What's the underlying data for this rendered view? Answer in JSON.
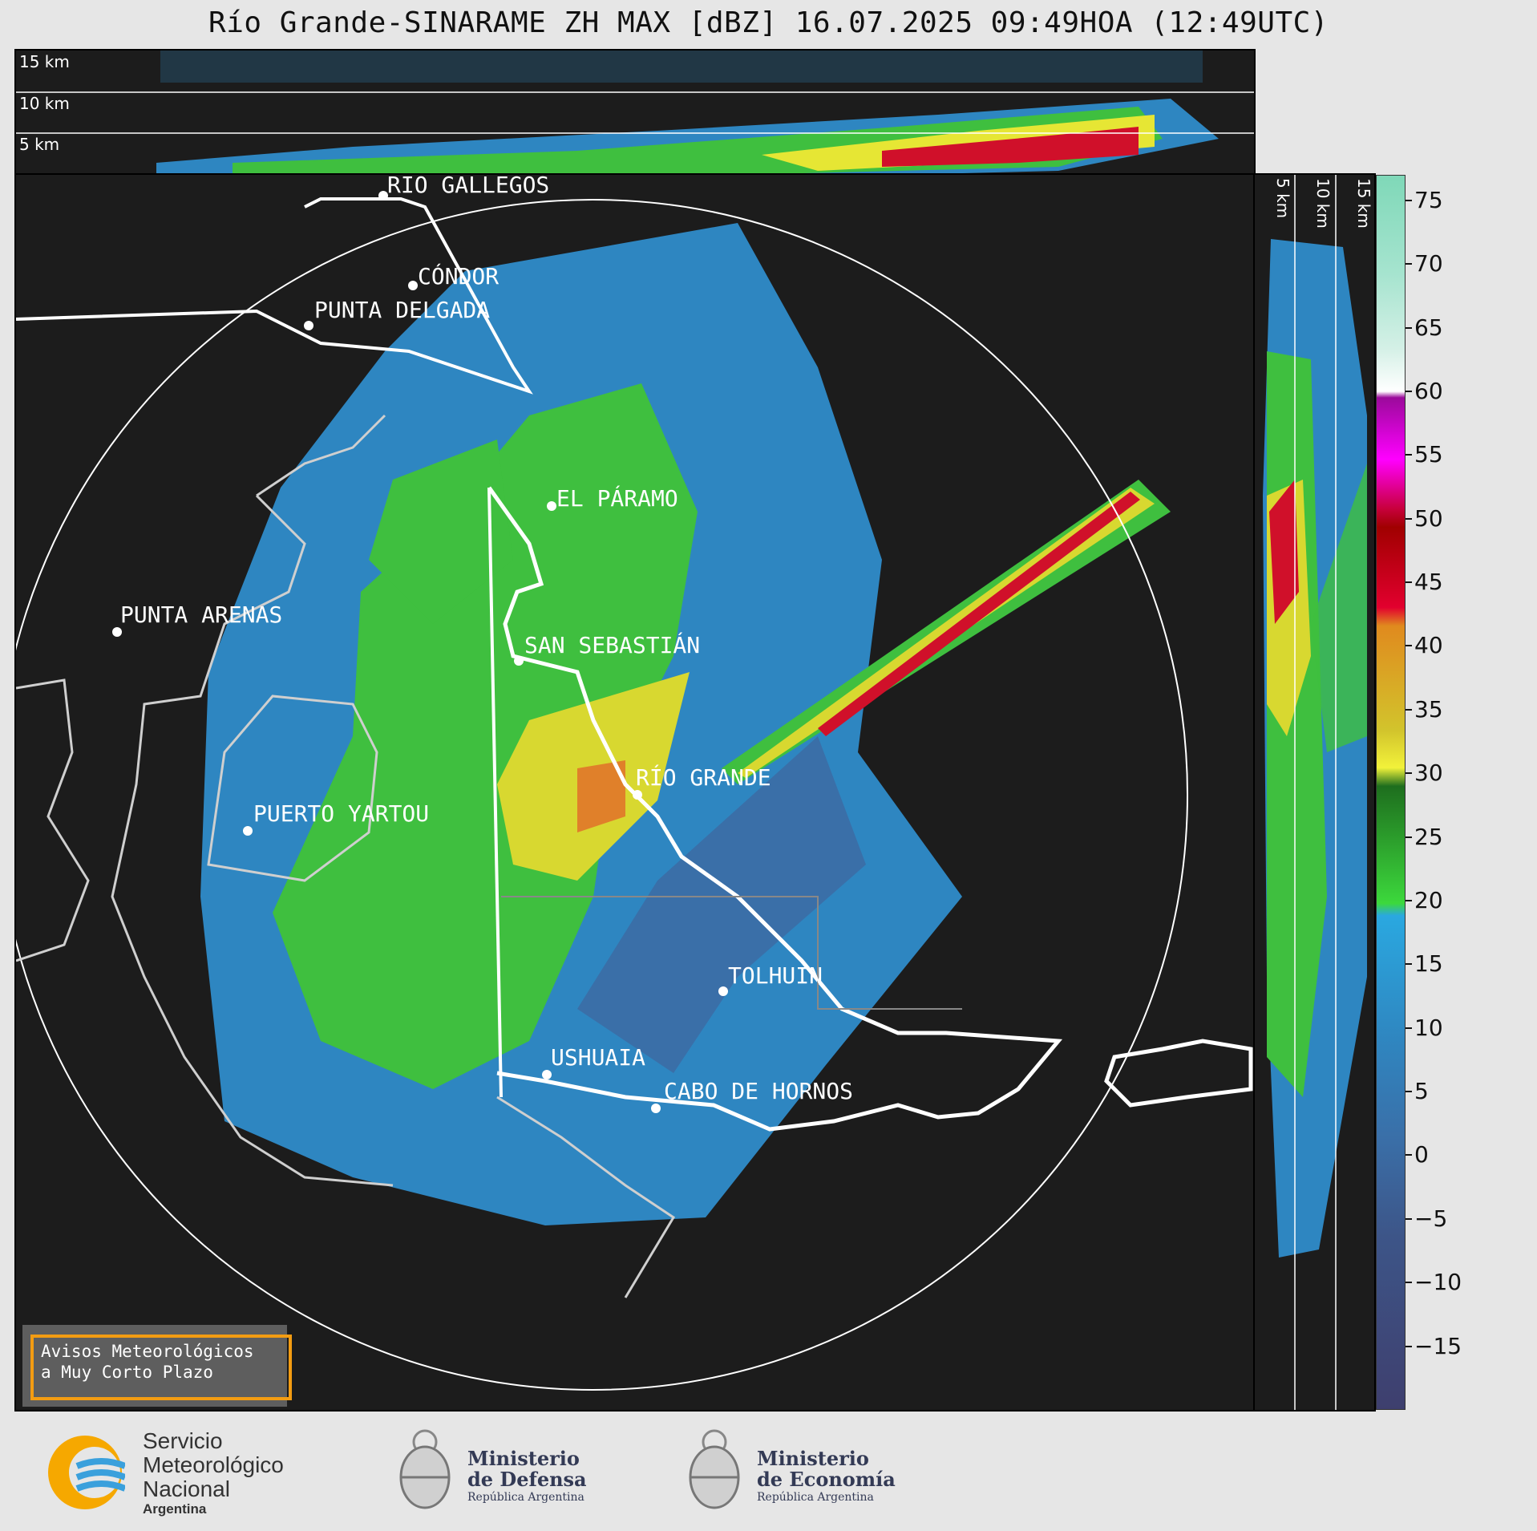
{
  "title": "Río Grande-SINARAME ZH MAX [dBZ] 16.07.2025 09:49HOA (12:49UTC)",
  "top_panel": {
    "levels": [
      "15 km",
      "10 km",
      "5 km"
    ]
  },
  "side_panel": {
    "levels": [
      "5 km",
      "10 km",
      "15 km"
    ]
  },
  "cities": [
    {
      "name": "RÍO GALLEGOS"
    },
    {
      "name": "CÓNDOR"
    },
    {
      "name": "PUNTA DELGADA"
    },
    {
      "name": "EL PÁRAMO"
    },
    {
      "name": "PUNTA ARENAS"
    },
    {
      "name": "SAN SEBASTIÁN"
    },
    {
      "name": "RÍO GRANDE"
    },
    {
      "name": "PUERTO YARTOU"
    },
    {
      "name": "TOLHUIN"
    },
    {
      "name": "USHUAIA"
    },
    {
      "name": "CABO DE HORNOS"
    }
  ],
  "colorbar": {
    "unit": "dBZ",
    "ticks": [
      "75",
      "70",
      "65",
      "60",
      "55",
      "50",
      "45",
      "40",
      "35",
      "30",
      "25",
      "20",
      "15",
      "10",
      "5",
      "0",
      "−5",
      "−10",
      "−15"
    ],
    "range": [
      -20,
      77
    ]
  },
  "notice": {
    "line1": "Avisos Meteorológicos",
    "line2": "a Muy Corto Plazo"
  },
  "logos": {
    "smn": {
      "line1": "Servicio",
      "line2": "Meteorológico",
      "line3": "Nacional",
      "line4": "Argentina"
    },
    "defensa": {
      "line1": "Ministerio",
      "line2": "de Defensa",
      "line3": "República Argentina"
    },
    "economia": {
      "line1": "Ministerio",
      "line2": "de Economía",
      "line3": "República Argentina"
    }
  }
}
